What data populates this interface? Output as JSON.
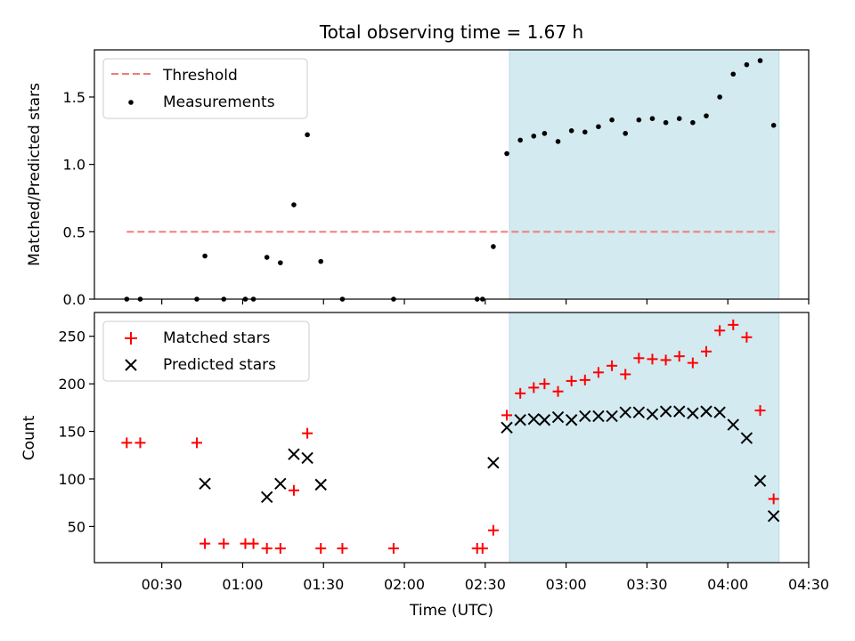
{
  "chart_data": [
    {
      "type": "scatter",
      "title": "Total observing time = 1.67 h",
      "xlabel": "",
      "ylabel": "Matched/Predicted stars",
      "xlim": [
        "00:05",
        "04:30"
      ],
      "ylim": [
        0,
        1.85
      ],
      "yticks": [
        "0.0",
        "0.5",
        "1.0",
        "1.5"
      ],
      "highlight_span": {
        "from": "02:39",
        "to": "04:19",
        "color": "#d3eaf0"
      },
      "legend_position": "upper-left",
      "series": [
        {
          "name": "Threshold",
          "style": "dashed-line",
          "color": "#f07b7b",
          "x": [
            "00:17",
            "04:19"
          ],
          "y": [
            0.5,
            0.5
          ]
        },
        {
          "name": "Measurements",
          "style": "dot",
          "color": "#000000",
          "x": [
            "00:17",
            "00:22",
            "00:43",
            "00:46",
            "00:53",
            "01:01",
            "01:04",
            "01:09",
            "01:14",
            "01:19",
            "01:24",
            "01:29",
            "01:37",
            "01:56",
            "02:27",
            "02:29",
            "02:33",
            "02:38",
            "02:43",
            "02:48",
            "02:52",
            "02:57",
            "03:02",
            "03:07",
            "03:12",
            "03:17",
            "03:22",
            "03:27",
            "03:32",
            "03:37",
            "03:42",
            "03:47",
            "03:52",
            "03:57",
            "04:02",
            "04:07",
            "04:12",
            "04:17"
          ],
          "y": [
            0,
            0,
            0,
            0.32,
            0,
            0,
            0,
            0.31,
            0.27,
            0.7,
            1.22,
            0.28,
            0,
            0,
            0,
            0,
            0.39,
            1.08,
            1.18,
            1.21,
            1.23,
            1.17,
            1.25,
            1.24,
            1.28,
            1.33,
            1.23,
            1.33,
            1.34,
            1.31,
            1.34,
            1.31,
            1.36,
            1.5,
            1.67,
            1.74,
            1.77,
            1.29
          ]
        }
      ]
    },
    {
      "type": "scatter",
      "title": "",
      "xlabel": "Time (UTC)",
      "ylabel": "Count",
      "xlim": [
        "00:05",
        "04:30"
      ],
      "ylim": [
        12,
        275
      ],
      "yticks": [
        "50",
        "100",
        "150",
        "200",
        "250"
      ],
      "xticks": [
        "00:30",
        "01:00",
        "01:30",
        "02:00",
        "02:30",
        "03:00",
        "03:30",
        "04:00",
        "04:30"
      ],
      "highlight_span": {
        "from": "02:39",
        "to": "04:19",
        "color": "#d3eaf0"
      },
      "legend_position": "upper-left",
      "series": [
        {
          "name": "Matched stars",
          "marker": "plus",
          "color": "#ff0000",
          "x": [
            "00:17",
            "00:22",
            "00:43",
            "00:46",
            "00:53",
            "01:01",
            "01:04",
            "01:09",
            "01:14",
            "01:19",
            "01:24",
            "01:29",
            "01:37",
            "01:56",
            "02:27",
            "02:29",
            "02:33",
            "02:38",
            "02:43",
            "02:48",
            "02:52",
            "02:57",
            "03:02",
            "03:07",
            "03:12",
            "03:17",
            "03:22",
            "03:27",
            "03:32",
            "03:37",
            "03:42",
            "03:47",
            "03:52",
            "03:57",
            "04:02",
            "04:07",
            "04:12",
            "04:17"
          ],
          "y": [
            138,
            138,
            138,
            32,
            32,
            32,
            32,
            27,
            27,
            88,
            148,
            27,
            27,
            27,
            27,
            27,
            46,
            167,
            190,
            196,
            200,
            192,
            203,
            204,
            212,
            219,
            210,
            227,
            226,
            225,
            229,
            222,
            234,
            256,
            262,
            249,
            172,
            79
          ]
        },
        {
          "name": "Predicted stars",
          "marker": "cross",
          "color": "#000000",
          "x": [
            "00:46",
            "01:09",
            "01:14",
            "01:19",
            "01:24",
            "01:29",
            "02:33",
            "02:38",
            "02:43",
            "02:48",
            "02:52",
            "02:57",
            "03:02",
            "03:07",
            "03:12",
            "03:17",
            "03:22",
            "03:27",
            "03:32",
            "03:37",
            "03:42",
            "03:47",
            "03:52",
            "03:57",
            "04:02",
            "04:07",
            "04:12",
            "04:17"
          ],
          "y": [
            95,
            81,
            95,
            126,
            122,
            94,
            117,
            154,
            162,
            163,
            162,
            165,
            162,
            166,
            166,
            166,
            170,
            170,
            168,
            171,
            171,
            169,
            171,
            170,
            157,
            143,
            98,
            61
          ]
        }
      ]
    }
  ]
}
